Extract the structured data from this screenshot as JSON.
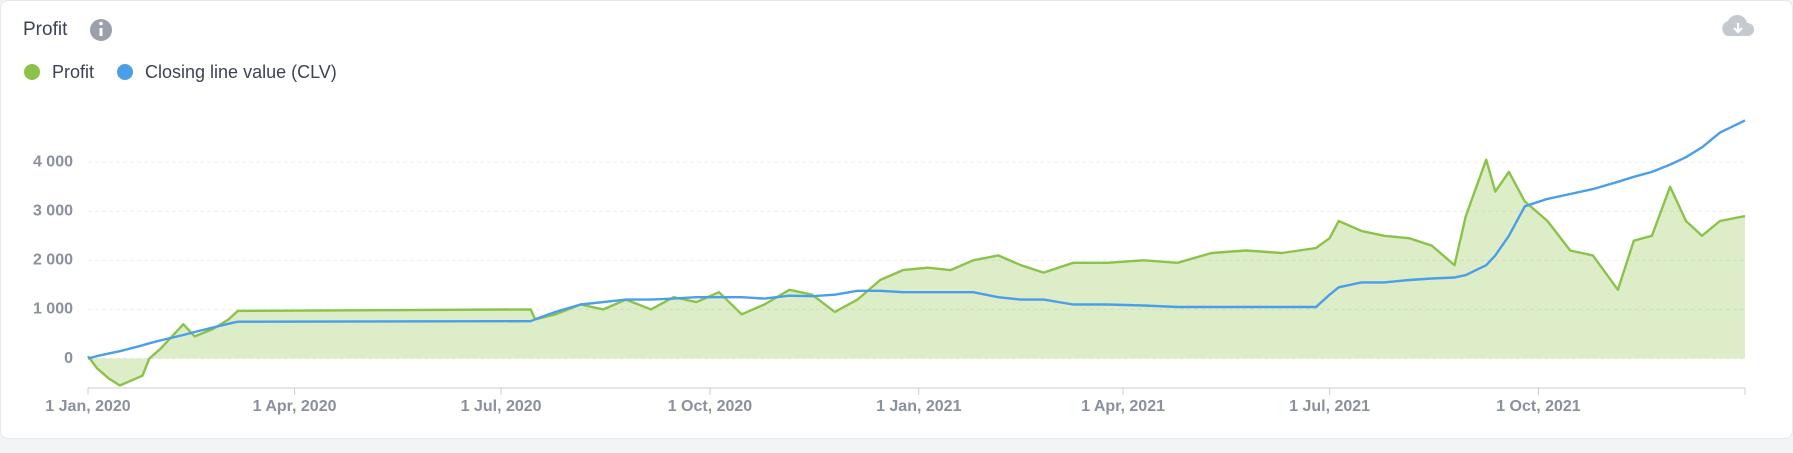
{
  "chart_data": {
    "type": "line",
    "title": "Profit",
    "x": [
      "2020-01-01",
      "2020-01-05",
      "2020-01-10",
      "2020-01-15",
      "2020-01-25",
      "2020-01-28",
      "2020-02-02",
      "2020-02-12",
      "2020-02-17",
      "2020-02-25",
      "2020-03-03",
      "2020-03-07",
      "2020-07-14",
      "2020-07-16",
      "2020-07-25",
      "2020-08-05",
      "2020-08-15",
      "2020-08-25",
      "2020-09-05",
      "2020-09-15",
      "2020-09-25",
      "2020-10-05",
      "2020-10-15",
      "2020-10-25",
      "2020-11-05",
      "2020-11-15",
      "2020-11-25",
      "2020-12-05",
      "2020-12-15",
      "2020-12-25",
      "2021-01-05",
      "2021-01-15",
      "2021-01-25",
      "2021-02-05",
      "2021-02-15",
      "2021-02-25",
      "2021-03-10",
      "2021-03-25",
      "2021-04-10",
      "2021-04-25",
      "2021-05-10",
      "2021-05-25",
      "2021-06-10",
      "2021-06-25",
      "2021-07-01",
      "2021-07-05",
      "2021-07-15",
      "2021-07-25",
      "2021-08-05",
      "2021-08-15",
      "2021-08-25",
      "2021-08-30",
      "2021-09-08",
      "2021-09-12",
      "2021-09-18",
      "2021-09-25",
      "2021-10-05",
      "2021-10-15",
      "2021-10-25",
      "2021-11-05",
      "2021-11-12",
      "2021-11-20",
      "2021-11-28",
      "2021-12-05",
      "2021-12-12",
      "2021-12-20",
      "2021-12-31"
    ],
    "series": [
      {
        "name": "Profit",
        "color": "#8bc34a",
        "area": true,
        "values": [
          50,
          -200,
          -400,
          -550,
          -350,
          0,
          200,
          700,
          450,
          600,
          800,
          970,
          1000,
          800,
          900,
          1100,
          1000,
          1200,
          1000,
          1250,
          1150,
          1350,
          900,
          1100,
          1400,
          1300,
          950,
          1200,
          1600,
          1800,
          1850,
          1800,
          2000,
          2100,
          1900,
          1750,
          1950,
          1950,
          2000,
          1950,
          2150,
          2200,
          2150,
          2250,
          2450,
          2800,
          2600,
          2500,
          2450,
          2300,
          1900,
          2900,
          4050,
          3400,
          3800,
          3200,
          2800,
          2200,
          2100,
          1400,
          2400,
          2500,
          3500,
          2800,
          2500,
          2800,
          2900
        ]
      },
      {
        "name": "Closing line value (CLV)",
        "color": "#4a9fe8",
        "values": [
          0,
          50,
          100,
          150,
          270,
          310,
          370,
          480,
          540,
          630,
          710,
          750,
          760,
          800,
          950,
          1100,
          1150,
          1200,
          1200,
          1220,
          1250,
          1250,
          1250,
          1220,
          1280,
          1270,
          1300,
          1380,
          1380,
          1350,
          1350,
          1350,
          1350,
          1250,
          1200,
          1200,
          1100,
          1100,
          1080,
          1050,
          1050,
          1050,
          1050,
          1050,
          1300,
          1450,
          1550,
          1550,
          1600,
          1630,
          1650,
          1700,
          1900,
          2100,
          2500,
          3100,
          3250,
          3350,
          3450,
          3600,
          3700,
          3800,
          3950,
          4100,
          4300,
          4600,
          4850
        ]
      }
    ],
    "xlim": [
      "2020-01-01",
      "2021-12-31"
    ],
    "xticks": [
      {
        "value": "2020-01-01",
        "label": "1 Jan, 2020"
      },
      {
        "value": "2020-04-01",
        "label": "1 Apr, 2020"
      },
      {
        "value": "2020-07-01",
        "label": "1 Jul, 2020"
      },
      {
        "value": "2020-10-01",
        "label": "1 Oct, 2020"
      },
      {
        "value": "2021-01-01",
        "label": "1 Jan, 2021"
      },
      {
        "value": "2021-04-01",
        "label": "1 Apr, 2021"
      },
      {
        "value": "2021-07-01",
        "label": "1 Jul, 2021"
      },
      {
        "value": "2021-10-01",
        "label": "1 Oct, 2021"
      }
    ],
    "ylim": [
      -600,
      5000
    ],
    "yticks": [
      0,
      {
        "value": 1000,
        "label": "1 000"
      },
      {
        "value": 2000,
        "label": "2 000"
      },
      {
        "value": 3000,
        "label": "3 000"
      },
      {
        "value": 4000,
        "label": "4 000"
      }
    ],
    "grid": true
  }
}
